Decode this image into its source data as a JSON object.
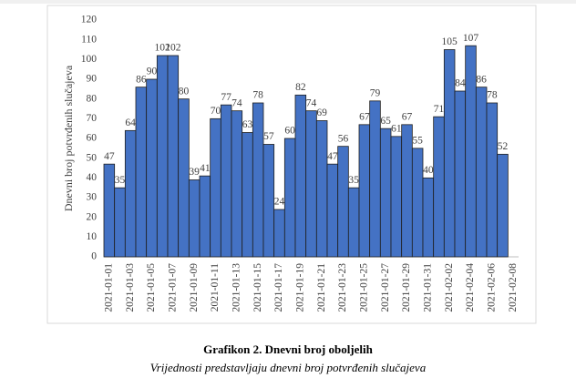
{
  "chart_data": {
    "type": "bar",
    "title": "Grafikon 2. Dnevni broj oboljelih",
    "subtitle": "Vrijednosti predstavljaju dnevni broj potvrđenih slučajeva",
    "y_label": "Dnevni broj potvrđenih slučajeva",
    "categories": [
      "2021-01-01",
      null,
      "2021-01-03",
      null,
      "2021-01-05",
      null,
      "2021-01-07",
      null,
      "2021-01-09",
      null,
      "2021-01-11",
      null,
      "2021-01-13",
      null,
      "2021-01-15",
      null,
      "2021-01-17",
      null,
      "2021-01-19",
      null,
      "2021-01-21",
      null,
      "2021-01-23",
      null,
      "2021-01-25",
      null,
      "2021-01-27",
      null,
      "2021-01-29",
      null,
      "2021-01-31",
      null,
      "2021-02-02",
      null,
      "2021-02-04",
      null,
      "2021-02-06",
      null,
      "2021-02-08"
    ],
    "values": [
      47,
      35,
      64,
      86,
      90,
      102,
      102,
      80,
      39,
      41,
      70,
      77,
      74,
      63,
      78,
      57,
      24,
      60,
      82,
      74,
      69,
      47,
      56,
      35,
      67,
      79,
      65,
      61,
      67,
      55,
      40,
      71,
      105,
      84,
      107,
      86,
      78,
      52,
      null
    ],
    "color": "#4472c4",
    "ylim": [
      0,
      120
    ],
    "yticks": [
      0,
      10,
      20,
      30,
      40,
      50,
      60,
      70,
      80,
      90,
      100,
      110,
      120
    ],
    "grid": false
  }
}
